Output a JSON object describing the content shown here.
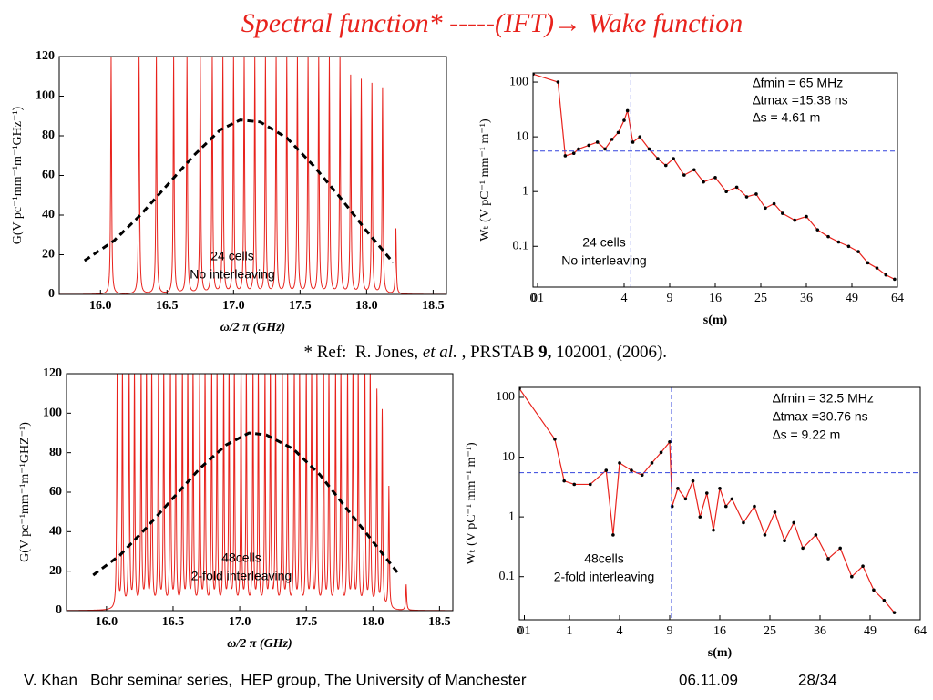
{
  "title": "Spectral function* -----(IFT)→ Wake function",
  "reference": [
    "* Ref:  R. Jones, ",
    "et al.",
    " , PRSTAB ",
    "9,",
    " 102001, (2006)."
  ],
  "footer": [
    "V. Khan   Bohr seminar series,  HEP group, The University of Manchester",
    "06.11.09",
    "28/34"
  ],
  "chart_data": [
    {
      "type": "spectrum",
      "xlabel": "ω/2 π (GHz)",
      "ylabel": "G(V pc⁻¹mm⁻¹m⁻¹GHz⁻¹)",
      "xlim": [
        15.69,
        18.6
      ],
      "ylim": [
        0,
        120
      ],
      "xticks": [
        {
          "value": 16,
          "label": "16.0"
        },
        16.5,
        {
          "value": 17,
          "label": "17.0"
        },
        17.5,
        {
          "value": 18,
          "label": "18.0"
        },
        18.5
      ],
      "yticks": [
        0,
        20,
        40,
        60,
        80,
        100,
        120
      ],
      "peaks": {
        "color": "#e8221c",
        "x": [
          16.08,
          16.29,
          16.42,
          16.55,
          16.65,
          16.75,
          16.84,
          16.92,
          17.0,
          17.08,
          17.16,
          17.24,
          17.32,
          17.4,
          17.48,
          17.56,
          17.64,
          17.72,
          17.8,
          17.88,
          17.96,
          18.04,
          18.12,
          18.22
        ],
        "values": [
          120,
          120,
          120,
          120,
          120,
          120,
          120,
          120,
          120,
          120,
          120,
          120,
          120,
          120,
          120,
          120,
          120,
          120,
          120,
          110,
          108,
          106,
          104,
          33
        ]
      },
      "envelope": {
        "color": "#000000",
        "x": [
          15.88,
          16.1,
          16.3,
          16.5,
          16.7,
          16.9,
          17.05,
          17.2,
          17.4,
          17.6,
          17.8,
          18.0,
          18.2
        ],
        "values": [
          17,
          27,
          40,
          55,
          70,
          83,
          88,
          87,
          79,
          65,
          49,
          32,
          16
        ]
      },
      "annotations": [
        "24 cells",
        "No interleaving"
      ]
    },
    {
      "type": "line",
      "xscale": "sqrt",
      "yscale": "log",
      "xlabel": "s(m)",
      "ylabel": "Wₜ (V pC⁻¹  mm⁻¹  m⁻¹)",
      "xlim": [
        0,
        64
      ],
      "ylim": [
        0.018,
        147
      ],
      "xticks": [
        0,
        {
          "value": 0.01,
          "label": "01"
        },
        4,
        9,
        16,
        25,
        36,
        49,
        64
      ],
      "yticks": [
        0.1,
        1,
        10,
        100
      ],
      "series": [
        {
          "color": "#e8221c",
          "marker_color": "#000000",
          "x": [
            0,
            0.3,
            0.5,
            0.8,
            1.0,
            1.5,
            2.0,
            2.5,
            3.0,
            3.5,
            4.0,
            4.3,
            4.8,
            5.5,
            6.5,
            7.5,
            8.5,
            9.5,
            11,
            12.5,
            14,
            16,
            18,
            20,
            22,
            24,
            26,
            28,
            30,
            33,
            36,
            39,
            42,
            45,
            48,
            51,
            54,
            57,
            60,
            63
          ],
          "values": [
            140,
            100,
            4.5,
            5,
            6,
            7,
            8,
            6,
            9,
            12,
            20,
            30,
            8,
            10,
            6,
            4,
            3,
            4,
            2,
            2.5,
            1.5,
            1.8,
            1,
            1.2,
            0.8,
            0.9,
            0.5,
            0.6,
            0.4,
            0.3,
            0.35,
            0.2,
            0.15,
            0.12,
            0.1,
            0.08,
            0.05,
            0.04,
            0.03,
            0.025
          ]
        }
      ],
      "ref_lines": {
        "x": 4.61,
        "y": 5.5,
        "color": "#3344dd"
      },
      "notes": [
        "∆fmin = 65 MHz",
        "∆tmax =15.38 ns",
        "∆s = 4.61 m"
      ],
      "annotations": [
        "24 cells",
        "No interleaving"
      ]
    },
    {
      "type": "spectrum",
      "xlabel": "ω/2 π (GHz)",
      "ylabel": "G(V pc⁻¹mm⁻¹m⁻¹GHZ⁻¹)",
      "xlim": [
        15.7,
        18.6
      ],
      "ylim": [
        0,
        120
      ],
      "xticks": [
        {
          "value": 16,
          "label": "16.0"
        },
        16.5,
        {
          "value": 17,
          "label": "17.0"
        },
        17.5,
        {
          "value": 18,
          "label": "18.0"
        },
        18.5
      ],
      "yticks": [
        0,
        20,
        40,
        60,
        80,
        100,
        120
      ],
      "peaks": {
        "color": "#e8221c",
        "x": [
          16.08,
          16.12,
          16.17,
          16.21,
          16.26,
          16.3,
          16.34,
          16.39,
          16.43,
          16.48,
          16.52,
          16.57,
          16.61,
          16.65,
          16.7,
          16.74,
          16.79,
          16.83,
          16.88,
          16.92,
          16.96,
          17.01,
          17.05,
          17.1,
          17.14,
          17.19,
          17.23,
          17.27,
          17.32,
          17.36,
          17.41,
          17.45,
          17.5,
          17.54,
          17.58,
          17.63,
          17.67,
          17.72,
          17.76,
          17.81,
          17.85,
          17.89,
          17.94,
          17.98,
          18.03,
          18.07,
          18.12,
          18.25
        ],
        "values": [
          120,
          120,
          120,
          120,
          120,
          120,
          120,
          120,
          120,
          120,
          120,
          120,
          120,
          120,
          120,
          120,
          120,
          120,
          120,
          120,
          120,
          120,
          120,
          120,
          120,
          120,
          120,
          120,
          120,
          120,
          120,
          120,
          120,
          120,
          120,
          120,
          120,
          120,
          120,
          120,
          120,
          120,
          120,
          120,
          110,
          100,
          62,
          13
        ]
      },
      "envelope": {
        "color": "#000000",
        "x": [
          15.9,
          16.1,
          16.3,
          16.5,
          16.7,
          16.9,
          17.07,
          17.2,
          17.4,
          17.6,
          17.8,
          18.0,
          18.2
        ],
        "values": [
          18,
          28,
          42,
          57,
          72,
          84,
          90,
          89,
          82,
          69,
          52,
          35,
          18
        ]
      },
      "annotations": [
        "48cells",
        "2-fold interleaving"
      ]
    },
    {
      "type": "line",
      "xscale": "sqrt",
      "yscale": "log",
      "xlabel": "s(m)",
      "ylabel": "Wₜ (V pC⁻¹  mm⁻¹  m⁻¹)",
      "xlim": [
        0,
        64
      ],
      "ylim": [
        0.019,
        147
      ],
      "xticks": [
        0,
        {
          "value": 0.01,
          "label": "01"
        },
        1,
        4,
        9,
        16,
        25,
        36,
        49,
        64
      ],
      "yticks": [
        0.1,
        1,
        10,
        100
      ],
      "series": [
        {
          "color": "#e8221c",
          "marker_color": "#000000",
          "x": [
            0,
            0.5,
            0.8,
            1.2,
            2,
            3,
            3.5,
            4,
            5,
            6,
            7,
            8,
            9,
            9.3,
            10,
            11,
            12,
            13,
            14,
            15,
            16,
            17,
            18,
            20,
            22,
            24,
            26,
            28,
            30,
            32,
            35,
            38,
            41,
            44,
            47,
            50,
            53,
            56
          ],
          "values": [
            140,
            20,
            4,
            3.5,
            3.5,
            6,
            0.5,
            8,
            6,
            5,
            8,
            12,
            18,
            1.5,
            3,
            2,
            4,
            1,
            2.5,
            0.6,
            3,
            1.5,
            2,
            0.8,
            1.5,
            0.5,
            1.2,
            0.4,
            0.8,
            0.3,
            0.5,
            0.2,
            0.3,
            0.1,
            0.15,
            0.06,
            0.04,
            0.025
          ]
        }
      ],
      "ref_lines": {
        "x": 9.22,
        "y": 5.5,
        "color": "#3344dd"
      },
      "notes": [
        "∆fmin = 32.5 MHz",
        "∆tmax =30.76 ns",
        "∆s = 9.22 m"
      ],
      "annotations": [
        "48cells",
        "2-fold interleaving"
      ]
    }
  ]
}
